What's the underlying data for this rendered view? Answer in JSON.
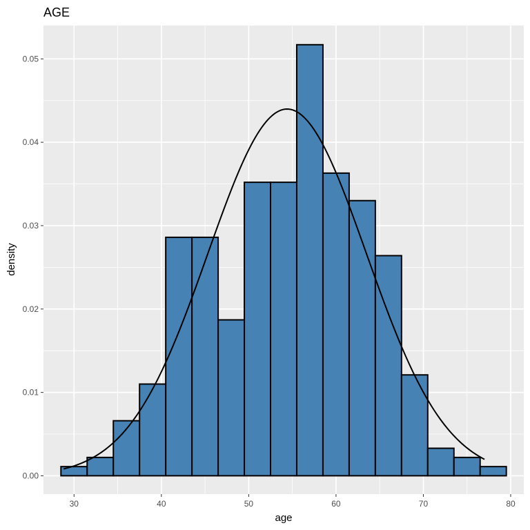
{
  "chart_data": {
    "type": "bar",
    "title": "AGE",
    "xlabel": "age",
    "ylabel": "density",
    "xlim": [
      26.5,
      81.5
    ],
    "ylim": [
      -0.0022,
      0.054
    ],
    "xticks": [
      30,
      40,
      50,
      60,
      70,
      80
    ],
    "xtick_labels": [
      "30",
      "40",
      "50",
      "60",
      "70",
      "80"
    ],
    "yticks": [
      0.0,
      0.01,
      0.02,
      0.03,
      0.04,
      0.05
    ],
    "ytick_labels": [
      "0.00",
      "0.01",
      "0.02",
      "0.03",
      "0.04",
      "0.05"
    ],
    "bin_width": 3,
    "bin_starts": [
      28.5,
      31.5,
      34.5,
      37.5,
      40.5,
      43.5,
      46.5,
      49.5,
      52.5,
      55.5,
      58.5,
      61.5,
      64.5,
      67.5,
      70.5,
      73.5,
      76.5
    ],
    "values": [
      0.0011,
      0.0022,
      0.0066,
      0.011,
      0.0286,
      0.0286,
      0.0187,
      0.0352,
      0.0352,
      0.0517,
      0.0363,
      0.033,
      0.0264,
      0.0121,
      0.0033,
      0.0022,
      0.0011
    ],
    "density_curve": {
      "type": "normal",
      "mean": 54.4,
      "sd": 9.07,
      "x_range": [
        28.8,
        77.0
      ]
    },
    "grid": true,
    "legend": "none",
    "colors": {
      "bar_fill": "#4682b4",
      "bar_outline": "#000000",
      "panel_background": "#ebebeb",
      "grid": "#ffffff",
      "curve": "#000000"
    }
  }
}
